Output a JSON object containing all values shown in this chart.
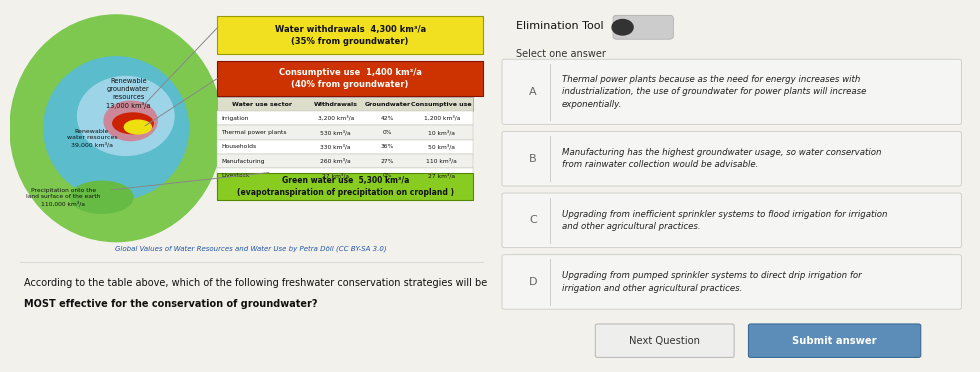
{
  "left_bg": "#f2f1ec",
  "right_bg": "#e6e6e2",
  "title_left": "Global Values of Water Resources and Water Use by Petra Döll (CC BY-SA 3.0)",
  "question_line1": "According to the table above, which of the following freshwater conservation strategies will be",
  "question_line2": "MOST effective for the conservation of groundwater?",
  "elim_tool_text": "Elimination Tool",
  "select_text": "Select one answer",
  "circle_outer_color": "#7ec850",
  "circle_mid_color": "#5bbccc",
  "circle_igw_color": "#9dd4e8",
  "circle_pink_color": "#cc8899",
  "circle_red_color": "#cc2200",
  "circle_yel_color": "#eedf10",
  "circle_sgrn_color": "#66bb44",
  "yellow_box_text": "Water withdrawals  4,300 km³/a\n(35% from groundwater)",
  "yellow_box_bg": "#f0e020",
  "red_box_text": "Consumptive use  1,400 km³/a\n(40% from groundwater)",
  "red_box_bg": "#cc3300",
  "green_box_text": "Green water use  5,300 km³/a\n(evapotranspiration of precipitation on cropland )",
  "green_box_bg": "#88cc22",
  "table_headers": [
    "Water use sector",
    "Withdrawals",
    "Groundwater",
    "Consumptive use"
  ],
  "table_rows": [
    [
      "Irrigation",
      "3,200 km³/a",
      "42%",
      "1,200 km³/a"
    ],
    [
      "Thermal power plants",
      "530 km³/a",
      "0%",
      "10 km³/a"
    ],
    [
      "Households",
      "330 km³/a",
      "36%",
      "50 km³/a"
    ],
    [
      "Manufacturing",
      "260 km³/a",
      "27%",
      "110 km³/a"
    ],
    [
      "Livestock",
      "27 km³/a",
      "0%",
      "27 km³/a"
    ]
  ],
  "answers": [
    {
      "label": "A",
      "text": "Thermal power plants because as the need for energy increases with\nindustrialization, the use of groundwater for power plants will increase\nexponentially."
    },
    {
      "label": "B",
      "text": "Manufacturing has the highest groundwater usage, so water conservation\nfrom rainwater collection would be advisable."
    },
    {
      "label": "C",
      "text": "Upgrading from inefficient sprinkler systems to flood irrigation for irrigation\nand other agricultural practices."
    },
    {
      "label": "D",
      "text": "Upgrading from pumped sprinkler systems to direct drip irrigation for\nirrigation and other agricultural practices."
    }
  ],
  "btn_next": "Next Question",
  "btn_submit": "Submit answer",
  "btn_submit_color": "#5b8db8"
}
